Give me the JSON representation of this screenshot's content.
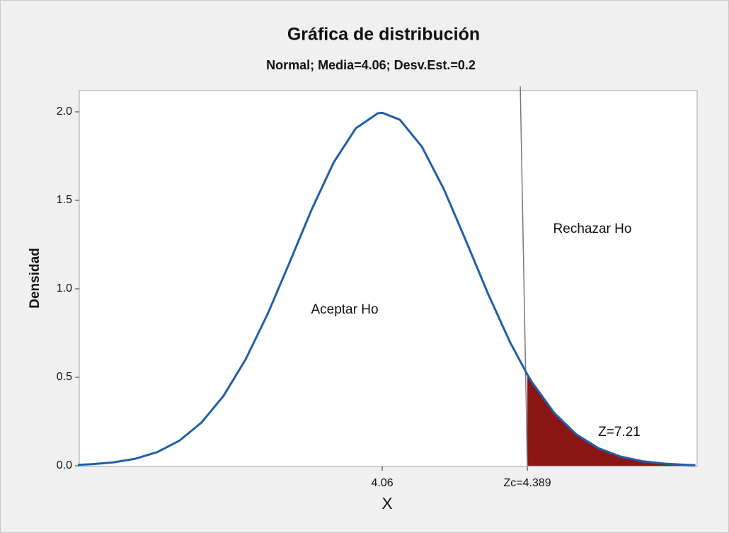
{
  "chart_data": {
    "type": "line",
    "title": "Gráfica de distribución",
    "subtitle": "Normal; Media=4.06; Desv.Est.=0.2",
    "x_label": "X",
    "y_label": "Densidad",
    "x": [
      3.37,
      3.4,
      3.45,
      3.5,
      3.55,
      3.6,
      3.65,
      3.7,
      3.75,
      3.8,
      3.85,
      3.9,
      3.95,
      4.0,
      4.05,
      4.06,
      4.1,
      4.15,
      4.2,
      4.25,
      4.3,
      4.35,
      4.389,
      4.4,
      4.45,
      4.5,
      4.55,
      4.6,
      4.65,
      4.7,
      4.75,
      4.77
    ],
    "values": [
      0.0052,
      0.0086,
      0.0191,
      0.0396,
      0.0772,
      0.1416,
      0.2439,
      0.3947,
      0.6,
      0.8569,
      1.1497,
      1.4484,
      1.7147,
      1.9069,
      1.9922,
      1.9947,
      1.9552,
      1.8026,
      1.5613,
      1.2703,
      0.971,
      0.6972,
      0.5156,
      0.4702,
      0.298,
      0.1773,
      0.0992,
      0.0521,
      0.0257,
      0.0119,
      0.0052,
      0.0037
    ],
    "color": "#1f5fa8",
    "area_color": "#8b1414",
    "xlim": [
      3.373,
      4.774
    ],
    "ylim": [
      0,
      2.12
    ],
    "xticks": [
      4.06,
      {
        "value": 4.389,
        "label": "Zc=4.389"
      }
    ],
    "yticks": [
      {
        "value": 0,
        "label": "0.0"
      },
      0.5,
      {
        "value": 1,
        "label": "1.0"
      },
      1.5,
      {
        "value": 2,
        "label": "2.0"
      }
    ],
    "annotations": [
      "Aceptar Ho",
      "Rechazar Ho",
      "Z=7.21"
    ]
  }
}
